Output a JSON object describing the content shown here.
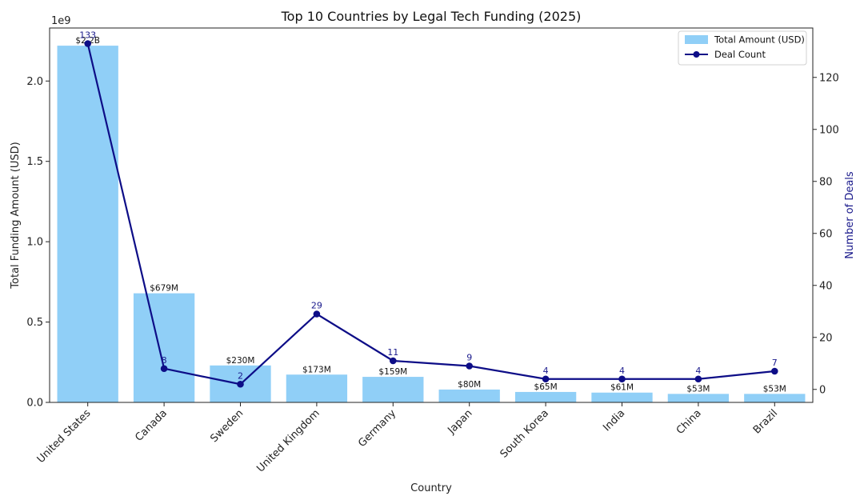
{
  "chart_data": {
    "type": "bar",
    "title": "Top 10 Countries by Legal Tech Funding (2025)",
    "xlabel": "Country",
    "ylabel": "Total Funding Amount (USD)",
    "y2label": "Number of Deals",
    "y_offset_label": "1e9",
    "categories": [
      "United States",
      "Canada",
      "Sweden",
      "United Kingdom",
      "Germany",
      "Japan",
      "South Korea",
      "India",
      "China",
      "Brazil"
    ],
    "ylim": [
      0,
      2.33
    ],
    "yticks": [
      0.0,
      0.5,
      1.0,
      1.5,
      2.0
    ],
    "ytick_labels": [
      "0.0",
      "0.5",
      "1.0",
      "1.5",
      "2.0"
    ],
    "y2lim": [
      -5,
      139
    ],
    "y2ticks": [
      0,
      20,
      40,
      60,
      80,
      100,
      120
    ],
    "series": [
      {
        "name": "Total Amount (USD)",
        "type": "bar",
        "color": "#90cff7",
        "values": [
          2.22,
          0.679,
          0.23,
          0.173,
          0.159,
          0.08,
          0.065,
          0.061,
          0.053,
          0.053
        ],
        "labels": [
          "$2.2B",
          "$679M",
          "$230M",
          "$173M",
          "$159M",
          "$80M",
          "$65M",
          "$61M",
          "$53M",
          "$53M"
        ]
      },
      {
        "name": "Deal Count",
        "type": "line",
        "color": "#0d0d87",
        "values": [
          133,
          8,
          2,
          29,
          11,
          9,
          4,
          4,
          4,
          7
        ],
        "labels": [
          "133",
          "8",
          "2",
          "29",
          "11",
          "9",
          "4",
          "4",
          "4",
          "7"
        ]
      }
    ],
    "legend": "top-right",
    "grid": false
  }
}
